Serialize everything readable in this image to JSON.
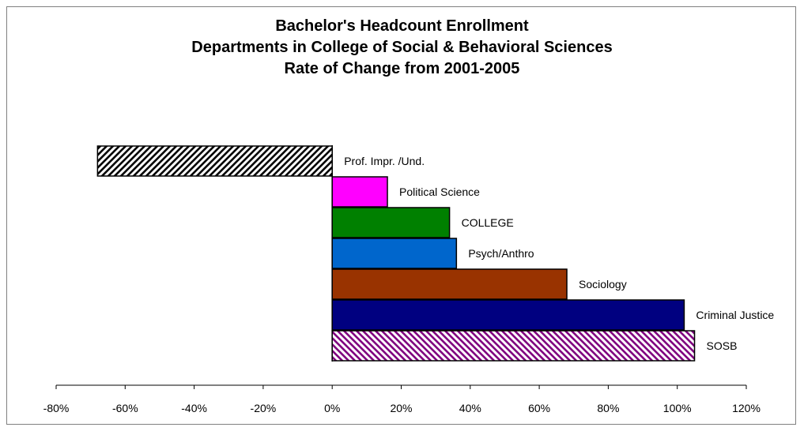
{
  "chart_data": {
    "type": "bar",
    "orientation": "horizontal",
    "title": [
      "Bachelor's Headcount Enrollment",
      "Departments in College of Social & Behavioral Sciences",
      "Rate of Change from 2001-2005"
    ],
    "categories": [
      "Prof. Impr. /Und.",
      "Political Science",
      "COLLEGE",
      "Psych/Anthro",
      "Sociology",
      "Criminal Justice",
      "SOSB"
    ],
    "values": [
      -68,
      16,
      34,
      36,
      68,
      102,
      105
    ],
    "colors": [
      "#000000",
      "#ff00ff",
      "#008000",
      "#0066cc",
      "#993300",
      "#000080",
      "#800080"
    ],
    "fill_patterns": [
      "hatch-fwd",
      "solid",
      "solid",
      "solid",
      "solid",
      "solid",
      "hatch-back"
    ],
    "value_axis": {
      "min": -80,
      "max": 120,
      "step": 20,
      "tick_labels": [
        "-80%",
        "-60%",
        "-40%",
        "-20%",
        "0%",
        "20%",
        "40%",
        "60%",
        "80%",
        "100%",
        "120%"
      ]
    },
    "xlabel": "",
    "ylabel": "",
    "grid": false,
    "legend": "none",
    "category_labels": "beside bars"
  }
}
